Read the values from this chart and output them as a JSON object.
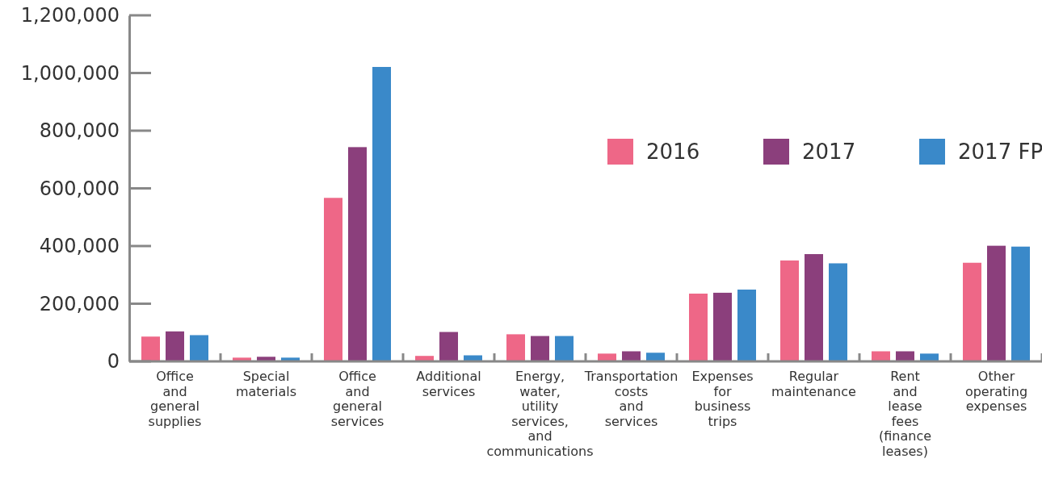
{
  "chart_data": {
    "type": "bar",
    "categories": [
      "Office and general supplies",
      "Special materials",
      "Office and general services",
      "Additional services",
      "Energy, water, utility services, and communications",
      "Transportation costs and services",
      "Expenses for business trips",
      "Regular maintenance",
      "Rent and lease fees (finance leases)",
      "Other operating expenses"
    ],
    "series": [
      {
        "name": "2016",
        "color": "#ee6787",
        "values": [
          86000,
          13000,
          567000,
          19000,
          94000,
          27000,
          235000,
          350000,
          35000,
          342000
        ]
      },
      {
        "name": "2017",
        "color": "#8b3f7c",
        "values": [
          104000,
          16000,
          743000,
          102000,
          88000,
          35000,
          238000,
          372000,
          35000,
          401000
        ]
      },
      {
        "name": "2017 FP",
        "color": "#3a89c9",
        "values": [
          91000,
          13000,
          1021000,
          21000,
          88000,
          30000,
          249000,
          340000,
          27000,
          398000
        ]
      }
    ],
    "ylim": [
      0,
      1200000
    ],
    "yticks": [
      {
        "value": 0,
        "label": "0"
      },
      {
        "value": 200000,
        "label": "200,000"
      },
      {
        "value": 400000,
        "label": "400,000"
      },
      {
        "value": 600000,
        "label": "600,000"
      },
      {
        "value": 800000,
        "label": "800,000"
      },
      {
        "value": 1000000,
        "label": "1,000,000"
      },
      {
        "value": 1200000,
        "label": "1,200,000"
      }
    ],
    "legend": "top right"
  }
}
